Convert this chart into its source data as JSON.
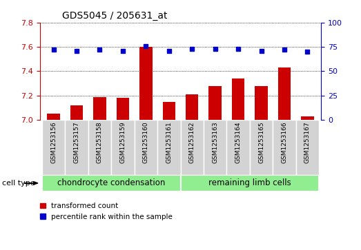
{
  "title": "GDS5045 / 205631_at",
  "samples": [
    "GSM1253156",
    "GSM1253157",
    "GSM1253158",
    "GSM1253159",
    "GSM1253160",
    "GSM1253161",
    "GSM1253162",
    "GSM1253163",
    "GSM1253164",
    "GSM1253165",
    "GSM1253166",
    "GSM1253167"
  ],
  "transformed_count": [
    7.05,
    7.12,
    7.19,
    7.18,
    7.6,
    7.15,
    7.21,
    7.28,
    7.34,
    7.28,
    7.43,
    7.03
  ],
  "percentile_rank": [
    72,
    71,
    72,
    71,
    76,
    71,
    73,
    73,
    73,
    71,
    72,
    70
  ],
  "cell_type_groups": [
    {
      "label": "chondrocyte condensation",
      "start": 0,
      "end": 5
    },
    {
      "label": "remaining limb cells",
      "start": 6,
      "end": 11
    }
  ],
  "ylim_left": [
    7.0,
    7.8
  ],
  "ylim_right": [
    0,
    100
  ],
  "yticks_left": [
    7.0,
    7.2,
    7.4,
    7.6,
    7.8
  ],
  "yticks_right": [
    0,
    25,
    50,
    75,
    100
  ],
  "bar_color": "#CC0000",
  "dot_color": "#0000CC",
  "background_plot": "#ffffff",
  "background_xtick": "#d3d3d3",
  "cell_type_color": "#90EE90",
  "legend_items": [
    "transformed count",
    "percentile rank within the sample"
  ],
  "left_spine_color": "#CC0000",
  "right_spine_color": "#0000CC"
}
